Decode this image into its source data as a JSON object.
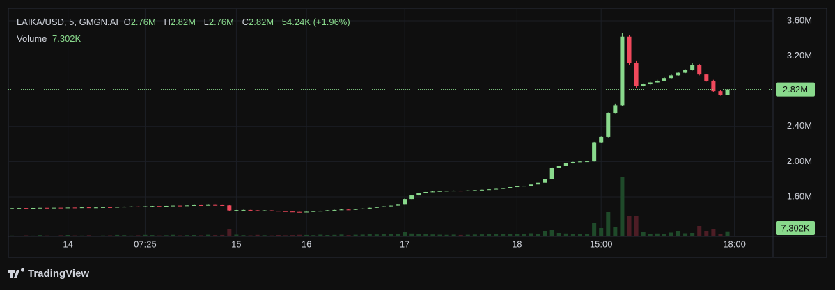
{
  "header": {
    "symbol": "LAIKA/USD, 5, GMGN.AI",
    "ohlc": [
      {
        "key": "O",
        "value": "2.76M"
      },
      {
        "key": "H",
        "value": "2.82M"
      },
      {
        "key": "L",
        "value": "2.76M"
      },
      {
        "key": "C",
        "value": "2.82M"
      }
    ],
    "change": "54.24K (+1.96%)",
    "volume_title": "Volume",
    "volume_value": "7.302K"
  },
  "brand": "TradingView",
  "chart_data": {
    "type": "candlestick",
    "up_color": "#89d98c",
    "down_color": "#f0495c",
    "volume_up_color": "#1f4a2a",
    "volume_down_color": "#4d1d25",
    "xlim": [
      -0.5,
      108.5
    ],
    "ylim": [
      1149000,
      3742000
    ],
    "volume_ylim": [
      0,
      90000
    ],
    "grid": true,
    "xticks": [
      {
        "value": 8,
        "label": "14"
      },
      {
        "value": 19,
        "label": "07:25"
      },
      {
        "value": 32,
        "label": "15"
      },
      {
        "value": 42,
        "label": "16"
      },
      {
        "value": 56,
        "label": "17"
      },
      {
        "value": 72,
        "label": "18"
      },
      {
        "value": 84,
        "label": "15:00"
      },
      {
        "value": 103,
        "label": "18:00"
      }
    ],
    "yticks": [
      {
        "value": 3600000,
        "label": "3.60M"
      },
      {
        "value": 3200000,
        "label": "3.20M"
      },
      {
        "value": 2400000,
        "label": "2.40M"
      },
      {
        "value": 2000000,
        "label": "2.00M"
      },
      {
        "value": 1600000,
        "label": "1.60M"
      }
    ],
    "ohlc": [
      [
        1468000,
        1472000,
        1466000,
        1470000
      ],
      [
        1470000,
        1474000,
        1468000,
        1472000
      ],
      [
        1472000,
        1473000,
        1469000,
        1470000
      ],
      [
        1470000,
        1475000,
        1470000,
        1473000
      ],
      [
        1473000,
        1477000,
        1472000,
        1475000
      ],
      [
        1475000,
        1476000,
        1472000,
        1474000
      ],
      [
        1474000,
        1478000,
        1473000,
        1476000
      ],
      [
        1476000,
        1477000,
        1474000,
        1475000
      ],
      [
        1475000,
        1480000,
        1475000,
        1478000
      ],
      [
        1478000,
        1479000,
        1476000,
        1477000
      ],
      [
        1477000,
        1482000,
        1476000,
        1480000
      ],
      [
        1480000,
        1481000,
        1477000,
        1478000
      ],
      [
        1478000,
        1481000,
        1477000,
        1479000
      ],
      [
        1479000,
        1484000,
        1478000,
        1482000
      ],
      [
        1482000,
        1483000,
        1479000,
        1480000
      ],
      [
        1480000,
        1487000,
        1480000,
        1485000
      ],
      [
        1485000,
        1490000,
        1484000,
        1488000
      ],
      [
        1488000,
        1492000,
        1487000,
        1490000
      ],
      [
        1490000,
        1491000,
        1486000,
        1487000
      ],
      [
        1487000,
        1494000,
        1486000,
        1492000
      ],
      [
        1492000,
        1497000,
        1491000,
        1495000
      ],
      [
        1495000,
        1496000,
        1492000,
        1493000
      ],
      [
        1493000,
        1499000,
        1492000,
        1497000
      ],
      [
        1497000,
        1502000,
        1496000,
        1500000
      ],
      [
        1500000,
        1501000,
        1497000,
        1498000
      ],
      [
        1498000,
        1504000,
        1497000,
        1502000
      ],
      [
        1502000,
        1508000,
        1501000,
        1505000
      ],
      [
        1505000,
        1506000,
        1502000,
        1503000
      ],
      [
        1503000,
        1510000,
        1502000,
        1507000
      ],
      [
        1507000,
        1508000,
        1504000,
        1505000
      ],
      [
        1505000,
        1506000,
        1500000,
        1502000
      ],
      [
        1502000,
        1505000,
        1440000,
        1445000
      ],
      [
        1445000,
        1450000,
        1443000,
        1448000
      ],
      [
        1448000,
        1452000,
        1446000,
        1450000
      ],
      [
        1450000,
        1451000,
        1444000,
        1446000
      ],
      [
        1446000,
        1447000,
        1441000,
        1443000
      ],
      [
        1443000,
        1447000,
        1442000,
        1445000
      ],
      [
        1445000,
        1446000,
        1438000,
        1440000
      ],
      [
        1440000,
        1441000,
        1434000,
        1436000
      ],
      [
        1436000,
        1437000,
        1430000,
        1432000
      ],
      [
        1432000,
        1433000,
        1426000,
        1428000
      ],
      [
        1428000,
        1430000,
        1422000,
        1425000
      ],
      [
        1425000,
        1432000,
        1424000,
        1430000
      ],
      [
        1430000,
        1438000,
        1429000,
        1436000
      ],
      [
        1436000,
        1442000,
        1435000,
        1440000
      ],
      [
        1440000,
        1448000,
        1439000,
        1446000
      ],
      [
        1446000,
        1452000,
        1445000,
        1450000
      ],
      [
        1450000,
        1457000,
        1449000,
        1455000
      ],
      [
        1455000,
        1456000,
        1450000,
        1452000
      ],
      [
        1452000,
        1462000,
        1451000,
        1460000
      ],
      [
        1460000,
        1468000,
        1459000,
        1466000
      ],
      [
        1466000,
        1477000,
        1465000,
        1475000
      ],
      [
        1475000,
        1487000,
        1474000,
        1485000
      ],
      [
        1485000,
        1494000,
        1484000,
        1492000
      ],
      [
        1492000,
        1502000,
        1491000,
        1500000
      ],
      [
        1500000,
        1512000,
        1499000,
        1510000
      ],
      [
        1510000,
        1582000,
        1508000,
        1575000
      ],
      [
        1575000,
        1620000,
        1573000,
        1615000
      ],
      [
        1615000,
        1645000,
        1613000,
        1640000
      ],
      [
        1640000,
        1658000,
        1638000,
        1655000
      ],
      [
        1655000,
        1663000,
        1653000,
        1660000
      ],
      [
        1660000,
        1667000,
        1658000,
        1665000
      ],
      [
        1665000,
        1670000,
        1663000,
        1668000
      ],
      [
        1668000,
        1672000,
        1666000,
        1670000
      ],
      [
        1670000,
        1671000,
        1665000,
        1668000
      ],
      [
        1668000,
        1674000,
        1667000,
        1672000
      ],
      [
        1672000,
        1677000,
        1671000,
        1675000
      ],
      [
        1675000,
        1682000,
        1674000,
        1680000
      ],
      [
        1680000,
        1687000,
        1679000,
        1685000
      ],
      [
        1685000,
        1692000,
        1684000,
        1690000
      ],
      [
        1690000,
        1702000,
        1689000,
        1700000
      ],
      [
        1700000,
        1712000,
        1699000,
        1710000
      ],
      [
        1710000,
        1720000,
        1709000,
        1718000
      ],
      [
        1718000,
        1727000,
        1717000,
        1725000
      ],
      [
        1725000,
        1745000,
        1724000,
        1740000
      ],
      [
        1740000,
        1765000,
        1738000,
        1760000
      ],
      [
        1760000,
        1805000,
        1758000,
        1800000
      ],
      [
        1800000,
        1935000,
        1798000,
        1930000
      ],
      [
        1930000,
        1955000,
        1928000,
        1950000
      ],
      [
        1950000,
        1985000,
        1948000,
        1980000
      ],
      [
        1980000,
        1998000,
        1978000,
        1995000
      ],
      [
        1995000,
        2003000,
        1993000,
        2000000
      ],
      [
        2000000,
        2004000,
        1997000,
        2002000
      ],
      [
        2002000,
        2225000,
        2000000,
        2220000
      ],
      [
        2220000,
        2285000,
        2215000,
        2280000
      ],
      [
        2280000,
        2560000,
        2275000,
        2550000
      ],
      [
        2550000,
        2660000,
        2545000,
        2640000
      ],
      [
        2640000,
        3460000,
        2635000,
        3420000
      ],
      [
        3420000,
        3440000,
        3100000,
        3120000
      ],
      [
        3120000,
        3150000,
        2840000,
        2860000
      ],
      [
        2860000,
        2890000,
        2850000,
        2880000
      ],
      [
        2880000,
        2910000,
        2870000,
        2900000
      ],
      [
        2900000,
        2930000,
        2895000,
        2920000
      ],
      [
        2920000,
        2960000,
        2915000,
        2950000
      ],
      [
        2950000,
        2990000,
        2945000,
        2980000
      ],
      [
        2980000,
        3020000,
        2975000,
        3010000
      ],
      [
        3010000,
        3050000,
        3005000,
        3040000
      ],
      [
        3040000,
        3120000,
        3035000,
        3100000
      ],
      [
        3100000,
        3110000,
        2980000,
        2990000
      ],
      [
        2990000,
        2995000,
        2910000,
        2920000
      ],
      [
        2920000,
        2930000,
        2790000,
        2800000
      ],
      [
        2800000,
        2810000,
        2750000,
        2760000
      ],
      [
        2760000,
        2820000,
        2760000,
        2820000
      ]
    ],
    "volume": [
      1200,
      900,
      1500,
      1100,
      1800,
      1300,
      1000,
      1600,
      2000,
      1400,
      1200,
      1700,
      900,
      1300,
      1500,
      2100,
      1800,
      1200,
      1600,
      2200,
      1900,
      1400,
      1700,
      2300,
      1500,
      1800,
      2000,
      1600,
      2400,
      1900,
      2100,
      10000,
      2500,
      1800,
      1500,
      2200,
      1700,
      1400,
      2000,
      1600,
      1900,
      2300,
      2100,
      1800,
      2500,
      2000,
      2200,
      2700,
      1900,
      2400,
      2600,
      3000,
      2800,
      3200,
      3500,
      3800,
      6000,
      4200,
      3500,
      3000,
      2800,
      2500,
      2300,
      2600,
      2100,
      2400,
      2700,
      2900,
      3100,
      3300,
      3500,
      3800,
      4000,
      3600,
      4500,
      4000,
      8000,
      9000,
      5000,
      4200,
      3800,
      3500,
      3200,
      20000,
      12000,
      35000,
      14000,
      85000,
      30000,
      30000,
      6000,
      3500,
      4200,
      4000,
      5500,
      8000,
      4500,
      5000,
      15000,
      8000,
      10000,
      4000,
      7302
    ]
  }
}
